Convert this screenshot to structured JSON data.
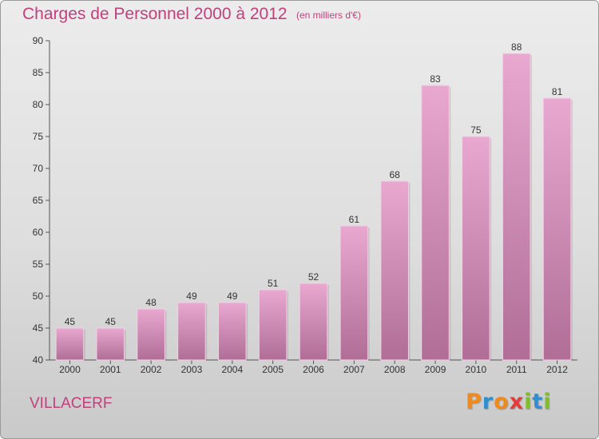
{
  "header": {
    "title": "Charges de Personnel 2000 à 2012",
    "subtitle": "(en milliers d'€)"
  },
  "footer": {
    "town": "VILLACERF",
    "logo": {
      "letters": [
        "P",
        "r",
        "o",
        "x",
        "i",
        "t",
        "i"
      ],
      "colors": [
        "#f08a1c",
        "#2f8fd0",
        "#f08a1c",
        "#e23c3c",
        "#7fbf2e",
        "#2f8fd0",
        "#7fbf2e"
      ]
    }
  },
  "colors": {
    "bar_top": "#e8a8d0",
    "bar_bottom": "#b06e97",
    "accent": "#c0407d"
  },
  "chart_data": {
    "type": "bar",
    "title": "Charges de Personnel 2000 à 2012",
    "subtitle": "(en milliers d'€)",
    "categories": [
      "2000",
      "2001",
      "2002",
      "2003",
      "2004",
      "2005",
      "2006",
      "2007",
      "2008",
      "2009",
      "2010",
      "2011",
      "2012"
    ],
    "values": [
      45,
      45,
      48,
      49,
      49,
      51,
      52,
      61,
      68,
      83,
      75,
      88,
      81
    ],
    "ylim": [
      40,
      90
    ],
    "yticks": [
      40,
      45,
      50,
      55,
      60,
      65,
      70,
      75,
      80,
      85,
      90
    ],
    "grid": false,
    "legend": "none"
  }
}
